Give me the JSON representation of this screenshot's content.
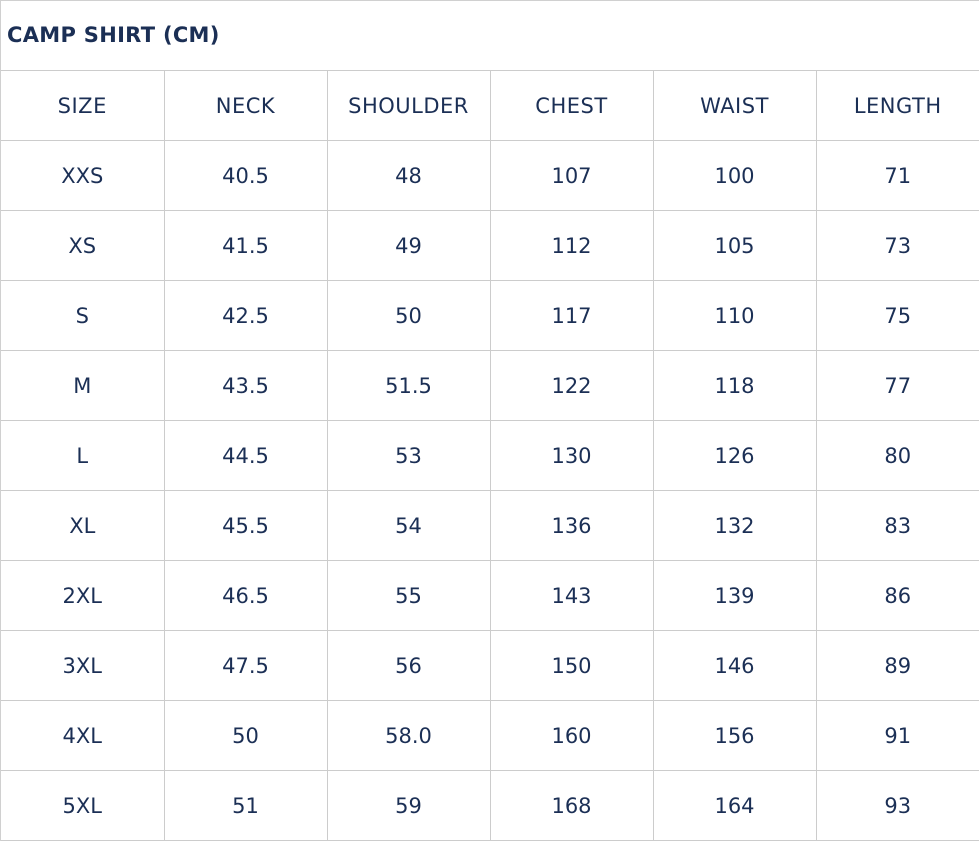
{
  "title": "CAMP SHIRT (CM)",
  "columns": [
    "SIZE",
    "NECK",
    "SHOULDER",
    "CHEST",
    "WAIST",
    "LENGTH"
  ],
  "rows": [
    [
      "XXS",
      "40.5",
      "48",
      "107",
      "100",
      "71"
    ],
    [
      "XS",
      "41.5",
      "49",
      "112",
      "105",
      "73"
    ],
    [
      "S",
      "42.5",
      "50",
      "117",
      "110",
      "75"
    ],
    [
      "M",
      "43.5",
      "51.5",
      "122",
      "118",
      "77"
    ],
    [
      "L",
      "44.5",
      "53",
      "130",
      "126",
      "80"
    ],
    [
      "XL",
      "45.5",
      "54",
      "136",
      "132",
      "83"
    ],
    [
      "2XL",
      "46.5",
      "55",
      "143",
      "139",
      "86"
    ],
    [
      "3XL",
      "47.5",
      "56",
      "150",
      "146",
      "89"
    ],
    [
      "4XL",
      "50",
      "58.0",
      "160",
      "156",
      "91"
    ],
    [
      "5XL",
      "51",
      "59",
      "168",
      "164",
      "93"
    ]
  ]
}
